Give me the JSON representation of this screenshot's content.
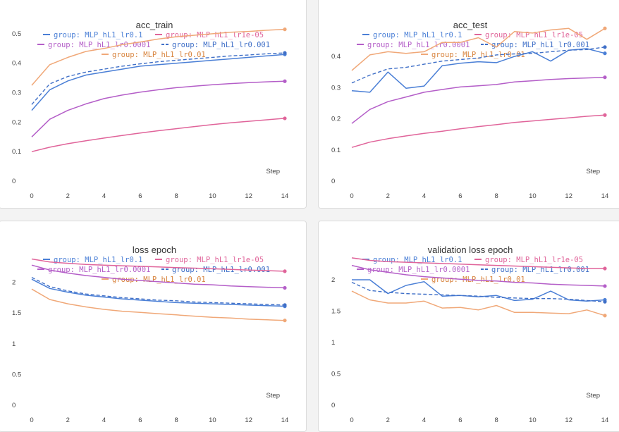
{
  "series_meta": [
    {
      "name": "group: MLP_hL1_lr0.1",
      "color": "#4a7fd6",
      "dash": false
    },
    {
      "name": "group: MLP_hL1_lr1e-05",
      "color": "#e0649a",
      "dash": false
    },
    {
      "name": "group: MLP_hL1_lr0.0001",
      "color": "#b45ec8",
      "dash": false
    },
    {
      "name": "group: MLP_hL1_lr0.001",
      "color": "#3f6fc7",
      "dash": true
    },
    {
      "name": "group: MLP_hL1_lr0.01",
      "color": "#f0a878",
      "dash": false
    }
  ],
  "chart_data": [
    {
      "type": "line",
      "title": "acc_train",
      "xlabel": "Step",
      "x": [
        0,
        1,
        2,
        3,
        4,
        5,
        6,
        7,
        8,
        9,
        10,
        11,
        12,
        13,
        14
      ],
      "xticks": [
        0,
        2,
        4,
        6,
        8,
        10,
        12,
        14
      ],
      "ylim": [
        0,
        0.55
      ],
      "yticks": [
        0,
        0.1,
        0.2,
        0.3,
        0.4,
        0.5
      ],
      "ytick_labels": [
        "0",
        "0.1",
        "0.2",
        "0.3",
        "0.4",
        "0.5"
      ],
      "series": [
        {
          "name": "group: MLP_hL1_lr0.1",
          "values": [
            0.24,
            0.31,
            0.34,
            0.36,
            0.37,
            0.38,
            0.39,
            0.395,
            0.4,
            0.405,
            0.41,
            0.415,
            0.42,
            0.425,
            0.43
          ]
        },
        {
          "name": "group: MLP_hL1_lr1e-05",
          "values": [
            0.1,
            0.115,
            0.127,
            0.137,
            0.146,
            0.155,
            0.163,
            0.171,
            0.178,
            0.185,
            0.192,
            0.198,
            0.203,
            0.208,
            0.213
          ]
        },
        {
          "name": "group: MLP_hL1_lr0.0001",
          "values": [
            0.15,
            0.21,
            0.24,
            0.262,
            0.28,
            0.292,
            0.302,
            0.31,
            0.317,
            0.322,
            0.327,
            0.331,
            0.334,
            0.337,
            0.339
          ]
        },
        {
          "name": "group: MLP_hL1_lr0.001",
          "values": [
            0.26,
            0.33,
            0.355,
            0.37,
            0.38,
            0.39,
            0.398,
            0.405,
            0.41,
            0.415,
            0.42,
            0.425,
            0.428,
            0.432,
            0.435
          ]
        },
        {
          "name": "group: MLP_hL1_lr0.01",
          "values": [
            0.325,
            0.395,
            0.42,
            0.44,
            0.45,
            0.463,
            0.472,
            0.482,
            0.49,
            0.495,
            0.5,
            0.505,
            0.508,
            0.512,
            0.515
          ]
        }
      ]
    },
    {
      "type": "line",
      "title": "acc_test",
      "xlabel": "Step",
      "x": [
        0,
        1,
        2,
        3,
        4,
        5,
        6,
        7,
        8,
        9,
        10,
        11,
        12,
        13,
        14
      ],
      "xticks": [
        0,
        2,
        4,
        6,
        8,
        10,
        12,
        14
      ],
      "ylim": [
        0,
        0.52
      ],
      "yticks": [
        0,
        0.1,
        0.2,
        0.3,
        0.4
      ],
      "ytick_labels": [
        "0",
        "0.1",
        "0.2",
        "0.3",
        "0.4"
      ],
      "series": [
        {
          "name": "group: MLP_hL1_lr0.1",
          "values": [
            0.29,
            0.285,
            0.35,
            0.298,
            0.305,
            0.37,
            0.378,
            0.383,
            0.38,
            0.4,
            0.415,
            0.385,
            0.42,
            0.425,
            0.41
          ]
        },
        {
          "name": "group: MLP_hL1_lr1e-05",
          "values": [
            0.108,
            0.125,
            0.136,
            0.145,
            0.153,
            0.16,
            0.168,
            0.175,
            0.181,
            0.188,
            0.193,
            0.198,
            0.203,
            0.208,
            0.212
          ]
        },
        {
          "name": "group: MLP_hL1_lr0.0001",
          "values": [
            0.185,
            0.23,
            0.255,
            0.27,
            0.285,
            0.294,
            0.302,
            0.306,
            0.31,
            0.318,
            0.322,
            0.326,
            0.329,
            0.331,
            0.333
          ]
        },
        {
          "name": "group: MLP_hL1_lr0.001",
          "values": [
            0.315,
            0.34,
            0.36,
            0.365,
            0.375,
            0.385,
            0.39,
            0.395,
            0.405,
            0.408,
            0.41,
            0.415,
            0.42,
            0.422,
            0.43
          ]
        },
        {
          "name": "group: MLP_hL1_lr0.01",
          "values": [
            0.355,
            0.405,
            0.415,
            0.41,
            0.415,
            0.445,
            0.445,
            0.46,
            0.43,
            0.48,
            0.475,
            0.485,
            0.49,
            0.455,
            0.49
          ]
        }
      ]
    },
    {
      "type": "line",
      "title": "loss epoch",
      "xlabel": "Step",
      "x": [
        0,
        1,
        2,
        3,
        4,
        5,
        6,
        7,
        8,
        9,
        10,
        11,
        12,
        13,
        14
      ],
      "xticks": [
        0,
        2,
        4,
        6,
        8,
        10,
        12,
        14
      ],
      "ylim": [
        0,
        2.5
      ],
      "yticks": [
        0,
        0.5,
        1,
        1.5,
        2
      ],
      "ytick_labels": [
        "0",
        "0.5",
        "1",
        "1.5",
        "2"
      ],
      "series": [
        {
          "name": "group: MLP_hL1_lr0.1",
          "values": [
            2.05,
            1.9,
            1.84,
            1.79,
            1.76,
            1.73,
            1.71,
            1.69,
            1.67,
            1.66,
            1.65,
            1.64,
            1.63,
            1.62,
            1.61
          ]
        },
        {
          "name": "group: MLP_hL1_lr1e-05",
          "values": [
            2.38,
            2.33,
            2.31,
            2.29,
            2.28,
            2.27,
            2.26,
            2.25,
            2.24,
            2.23,
            2.22,
            2.21,
            2.2,
            2.19,
            2.18
          ]
        },
        {
          "name": "group: MLP_hL1_lr0.0001",
          "values": [
            2.28,
            2.2,
            2.15,
            2.11,
            2.08,
            2.05,
            2.03,
            2.01,
            1.99,
            1.97,
            1.96,
            1.94,
            1.93,
            1.92,
            1.91
          ]
        },
        {
          "name": "group: MLP_hL1_lr0.001",
          "values": [
            2.08,
            1.93,
            1.86,
            1.81,
            1.78,
            1.75,
            1.73,
            1.71,
            1.7,
            1.68,
            1.67,
            1.66,
            1.65,
            1.64,
            1.63
          ]
        },
        {
          "name": "group: MLP_hL1_lr0.01",
          "values": [
            1.89,
            1.72,
            1.65,
            1.6,
            1.56,
            1.53,
            1.51,
            1.49,
            1.47,
            1.45,
            1.43,
            1.42,
            1.4,
            1.39,
            1.38
          ]
        }
      ]
    },
    {
      "type": "line",
      "title": "validation loss epoch",
      "xlabel": "Step",
      "x": [
        0,
        1,
        2,
        3,
        4,
        5,
        6,
        7,
        8,
        9,
        10,
        11,
        12,
        13,
        14
      ],
      "xticks": [
        0,
        2,
        4,
        6,
        8,
        10,
        12,
        14
      ],
      "ylim": [
        0,
        2.45
      ],
      "yticks": [
        0,
        0.5,
        1,
        1.5,
        2
      ],
      "ytick_labels": [
        "0",
        "0.5",
        "1",
        "1.5",
        "2"
      ],
      "series": [
        {
          "name": "group: MLP_hL1_lr0.1",
          "values": [
            2.0,
            2.0,
            1.78,
            1.91,
            1.97,
            1.74,
            1.75,
            1.73,
            1.75,
            1.67,
            1.69,
            1.82,
            1.68,
            1.66,
            1.68
          ]
        },
        {
          "name": "group: MLP_hL1_lr1e-05",
          "values": [
            2.35,
            2.31,
            2.29,
            2.28,
            2.27,
            2.26,
            2.25,
            2.24,
            2.23,
            2.22,
            2.21,
            2.2,
            2.19,
            2.18,
            2.18
          ]
        },
        {
          "name": "group: MLP_hL1_lr0.0001",
          "values": [
            2.23,
            2.16,
            2.12,
            2.08,
            2.05,
            2.03,
            2.01,
            1.99,
            1.98,
            1.96,
            1.95,
            1.93,
            1.92,
            1.91,
            1.9
          ]
        },
        {
          "name": "group: MLP_hL1_lr0.001",
          "values": [
            1.96,
            1.83,
            1.8,
            1.78,
            1.77,
            1.76,
            1.75,
            1.74,
            1.72,
            1.71,
            1.7,
            1.7,
            1.69,
            1.67,
            1.65
          ]
        },
        {
          "name": "group: MLP_hL1_lr0.01",
          "values": [
            1.82,
            1.68,
            1.63,
            1.63,
            1.66,
            1.55,
            1.56,
            1.52,
            1.59,
            1.48,
            1.48,
            1.47,
            1.46,
            1.52,
            1.43
          ]
        }
      ]
    }
  ]
}
